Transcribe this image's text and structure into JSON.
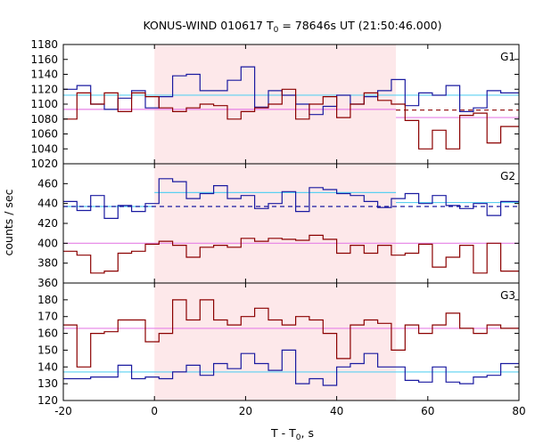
{
  "chart_data": {
    "type": "line",
    "title": "KONUS-WIND 010617 T",
    "title_sub": "0",
    "title_rest": " = 78646s UT (21:50:46.000)",
    "xlabel": "T - T",
    "xlabel_sub": "0",
    "xlabel_rest": ", s",
    "ylabel": "counts / sec",
    "xlim": [
      -20,
      80
    ],
    "xticks": [
      "-20",
      "0",
      "20",
      "40",
      "60",
      "80"
    ],
    "highlight_interval": [
      0,
      53
    ],
    "colors": {
      "red": "#8b0000",
      "blue": "#1a1aa0",
      "cyan": "#5bd0f0",
      "pink": "#e680e6",
      "band": "#fde8ea"
    },
    "panels": [
      {
        "label": "G1",
        "ylim": [
          1020,
          1180
        ],
        "yticks": [
          "1020",
          "1040",
          "1060",
          "1080",
          "1100",
          "1120",
          "1140",
          "1160",
          "1180"
        ],
        "x_edges": [
          -20,
          -17,
          -14,
          -11,
          -8,
          -5,
          -2,
          1,
          4,
          7,
          10,
          13,
          16,
          19,
          22,
          25,
          28,
          31,
          34,
          37,
          40,
          43,
          46,
          49,
          52,
          55,
          58,
          61,
          64,
          67,
          70,
          73,
          76,
          79
        ],
        "series": [
          {
            "color": "blue",
            "values": [
              1120,
              1125,
              1100,
              1093,
              1108,
              1118,
              1095,
              1110,
              1138,
              1140,
              1118,
              1118,
              1132,
              1150,
              1096,
              1118,
              1112,
              1100,
              1086,
              1097,
              1112,
              1100,
              1110,
              1118,
              1133,
              1098,
              1115,
              1112,
              1125,
              1090,
              1095,
              1118,
              1115
            ]
          },
          {
            "color": "red",
            "values": [
              1080,
              1115,
              1100,
              1115,
              1090,
              1115,
              1110,
              1095,
              1090,
              1095,
              1100,
              1098,
              1080,
              1090,
              1095,
              1100,
              1120,
              1080,
              1100,
              1110,
              1082,
              1100,
              1115,
              1105,
              1100,
              1078,
              1040,
              1065,
              1040,
              1085,
              1088,
              1048,
              1070
            ]
          }
        ],
        "background": [
          {
            "color": "cyan",
            "style": "solid",
            "x0": -20,
            "x1": 53,
            "y": 1112
          },
          {
            "color": "cyan",
            "style": "solid",
            "x0": 53,
            "x1": 80,
            "y": 1112
          },
          {
            "color": "pink",
            "style": "solid",
            "x0": -20,
            "x1": 53,
            "y": 1093
          },
          {
            "color": "red",
            "style": "dashed",
            "x0": 53,
            "x1": 80,
            "y": 1092
          },
          {
            "color": "pink",
            "style": "solid",
            "x0": 53,
            "x1": 80,
            "y": 1082
          }
        ]
      },
      {
        "label": "G2",
        "ylim": [
          360,
          480
        ],
        "yticks": [
          "360",
          "380",
          "400",
          "420",
          "440",
          "460"
        ],
        "x_edges": [
          -20,
          -17,
          -14,
          -11,
          -8,
          -5,
          -2,
          1,
          4,
          7,
          10,
          13,
          16,
          19,
          22,
          25,
          28,
          31,
          34,
          37,
          40,
          43,
          46,
          49,
          52,
          55,
          58,
          61,
          64,
          67,
          70,
          73,
          76,
          79
        ],
        "series": [
          {
            "color": "blue",
            "values": [
              442,
              433,
              448,
              425,
              438,
              432,
              440,
              465,
              462,
              445,
              450,
              458,
              445,
              448,
              435,
              440,
              452,
              432,
              456,
              454,
              450,
              448,
              442,
              436,
              445,
              450,
              440,
              448,
              438,
              435,
              440,
              428,
              442
            ]
          },
          {
            "color": "red",
            "values": [
              392,
              388,
              370,
              372,
              390,
              392,
              399,
              402,
              398,
              386,
              396,
              398,
              396,
              405,
              402,
              405,
              404,
              403,
              408,
              404,
              390,
              398,
              390,
              398,
              388,
              390,
              399,
              376,
              386,
              398,
              370,
              400,
              372
            ]
          }
        ],
        "background": [
          {
            "color": "cyan",
            "style": "solid",
            "x0": -20,
            "x1": 0,
            "y": 437
          },
          {
            "color": "cyan",
            "style": "solid",
            "x0": 0,
            "x1": 53,
            "y": 451
          },
          {
            "color": "cyan",
            "style": "solid",
            "x0": 53,
            "x1": 80,
            "y": 441
          },
          {
            "color": "blue",
            "style": "dashed",
            "x0": -20,
            "x1": 80,
            "y": 437
          },
          {
            "color": "pink",
            "style": "solid",
            "x0": -20,
            "x1": 80,
            "y": 400
          }
        ]
      },
      {
        "label": "G3",
        "ylim": [
          120,
          190
        ],
        "yticks": [
          "120",
          "130",
          "140",
          "150",
          "160",
          "170",
          "180"
        ],
        "x_edges": [
          -20,
          -17,
          -14,
          -11,
          -8,
          -5,
          -2,
          1,
          4,
          7,
          10,
          13,
          16,
          19,
          22,
          25,
          28,
          31,
          34,
          37,
          40,
          43,
          46,
          49,
          52,
          55,
          58,
          61,
          64,
          67,
          70,
          73,
          76,
          79
        ],
        "series": [
          {
            "color": "blue",
            "values": [
              133,
              133,
              134,
              134,
              141,
              133,
              134,
              133,
              137,
              141,
              135,
              142,
              139,
              148,
              142,
              138,
              150,
              130,
              133,
              129,
              140,
              142,
              148,
              140,
              140,
              132,
              131,
              140,
              131,
              130,
              134,
              135,
              142
            ]
          },
          {
            "color": "red",
            "values": [
              165,
              140,
              160,
              161,
              168,
              168,
              155,
              160,
              180,
              168,
              180,
              168,
              165,
              170,
              175,
              168,
              165,
              170,
              168,
              160,
              145,
              165,
              168,
              166,
              150,
              165,
              160,
              165,
              172,
              163,
              160,
              165,
              163
            ]
          }
        ],
        "background": [
          {
            "color": "pink",
            "style": "solid",
            "x0": -20,
            "x1": 80,
            "y": 163
          },
          {
            "color": "cyan",
            "style": "solid",
            "x0": -20,
            "x1": 80,
            "y": 137
          }
        ]
      }
    ]
  }
}
